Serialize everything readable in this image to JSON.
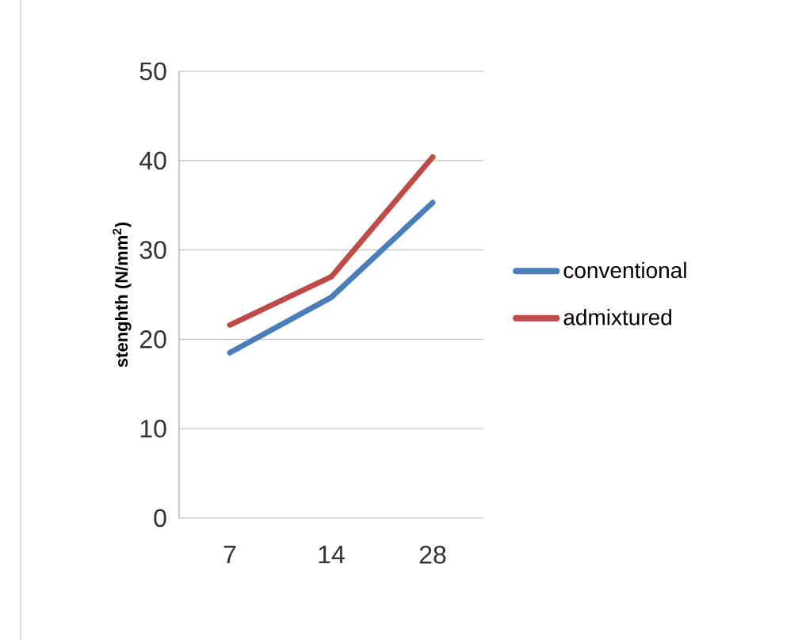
{
  "chart_data": {
    "type": "line",
    "ylabel": "stenghth (N/mm$^{2}$)",
    "categories": [
      "7",
      "14",
      "28"
    ],
    "series": [
      {
        "name": "conventional",
        "color": "#4a7ebb",
        "values": [
          18.5,
          24.7,
          35.3
        ]
      },
      {
        "name": "admixtured",
        "color": "#be4b48",
        "values": [
          21.6,
          27,
          40.4
        ]
      }
    ],
    "ylim": [
      0,
      50
    ],
    "yticks": [
      0,
      10,
      20,
      30,
      40,
      50
    ],
    "grid": "y",
    "legend": "right",
    "marker": "none",
    "line_style": "solid"
  }
}
